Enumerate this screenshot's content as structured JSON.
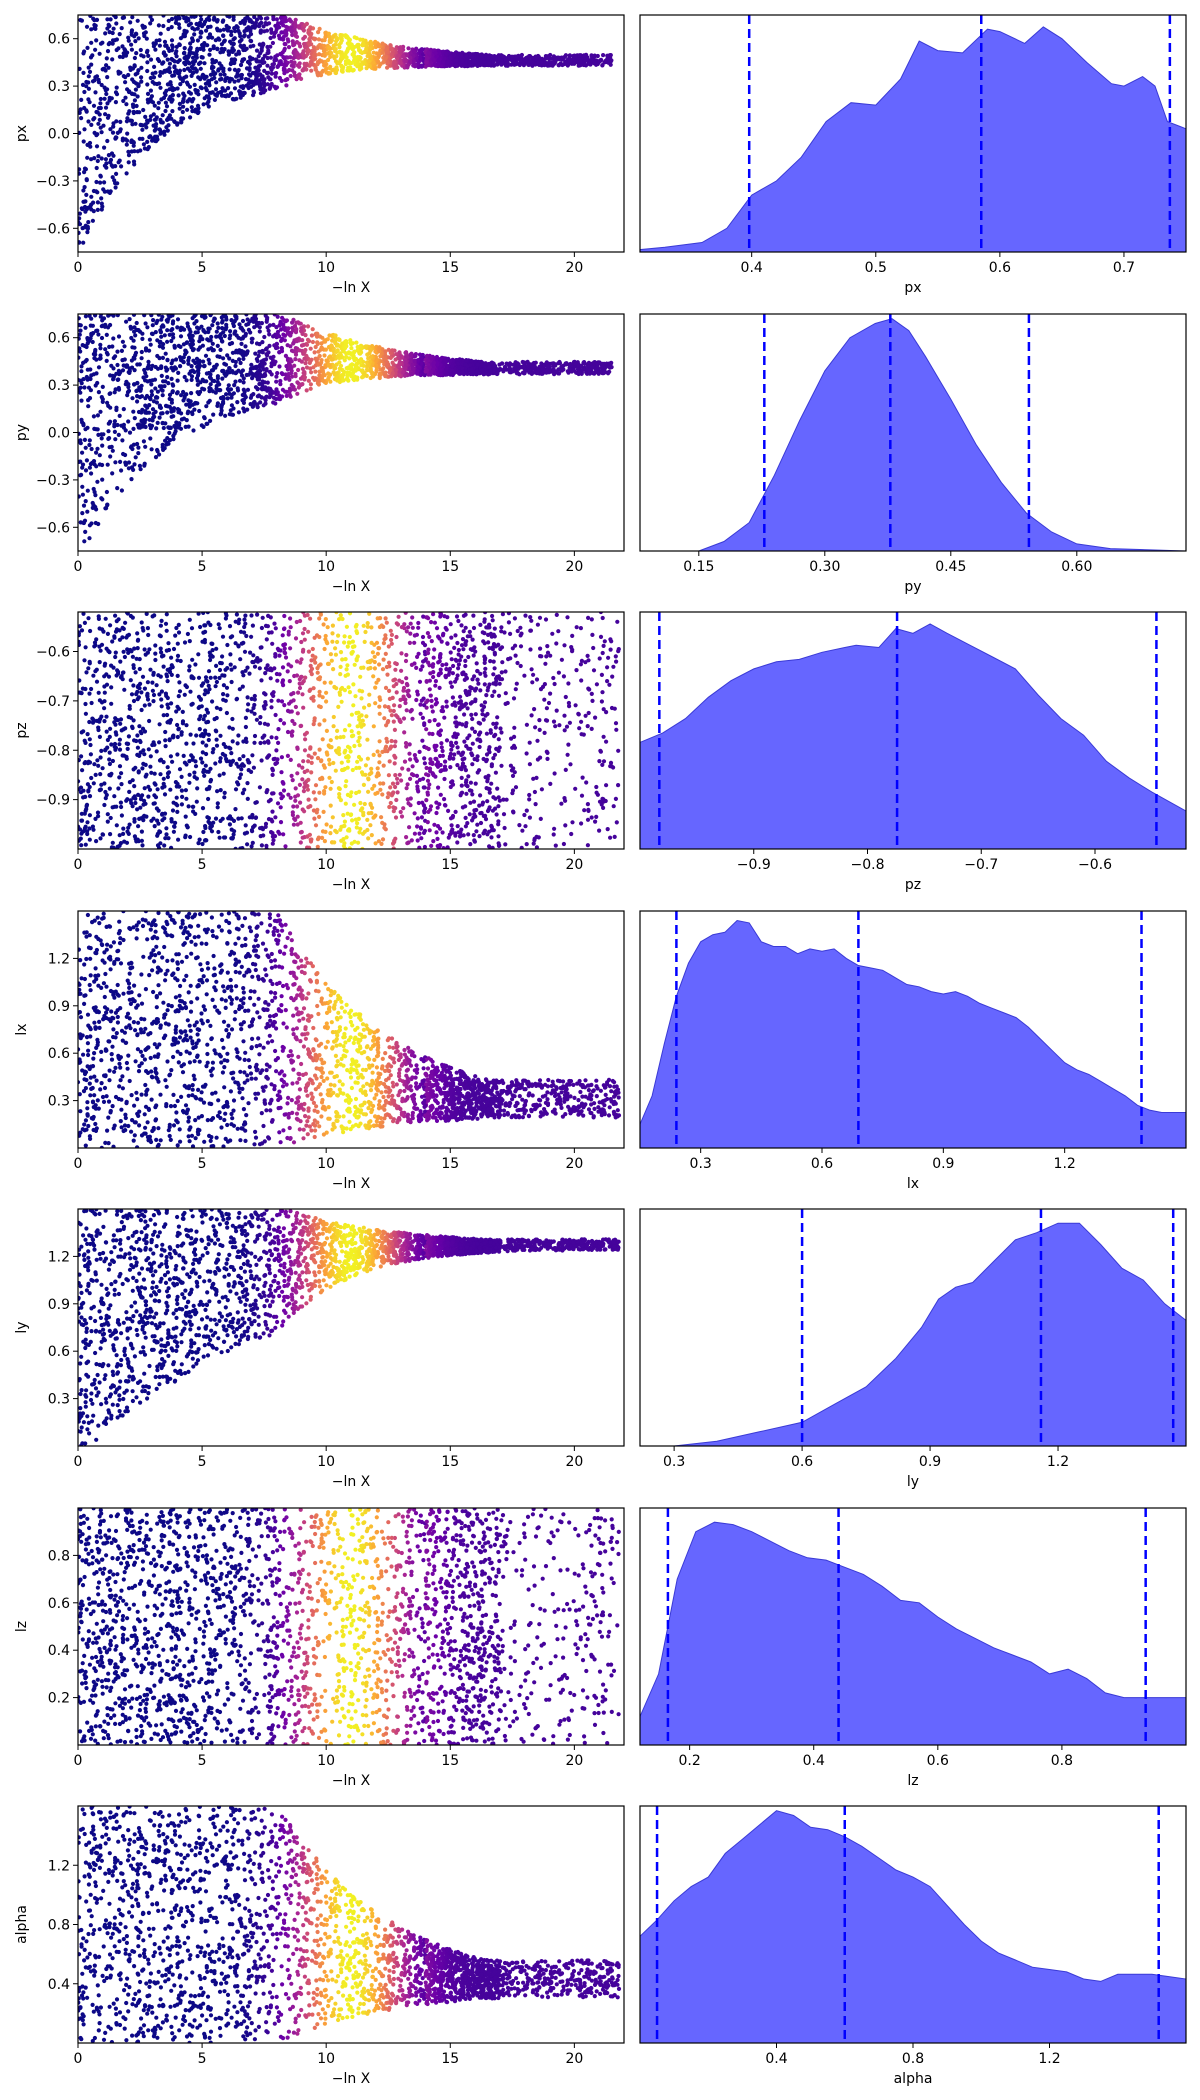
{
  "colors": {
    "kde_fill": "#6666ff",
    "kde_edge": "#3a3ad6",
    "quantile_line": "#0000ff",
    "axis": "#000000",
    "colormap": [
      "#0d0887",
      "#6a00a8",
      "#b12a90",
      "#e16462",
      "#fca636",
      "#f0f921"
    ]
  },
  "chart_data": [
    {
      "type": "scatter",
      "param": "px",
      "xlabel": "−ln X",
      "ylabel": "px",
      "xlim": [
        0,
        22
      ],
      "ylim": [
        -0.75,
        0.75
      ],
      "xticks": [
        0,
        5,
        10,
        15,
        20
      ],
      "xticklabels": [
        "0",
        "5",
        "10",
        "15",
        "20"
      ],
      "yticks": [
        -0.6,
        -0.3,
        0.0,
        0.3,
        0.6
      ],
      "yticklabels": [
        "−0.6",
        "−0.3",
        "0.0",
        "0.3",
        "0.6"
      ],
      "converge_to": 0.43,
      "tail_end": 21.5,
      "lower_start": -0.75,
      "lower_scale": 3.0,
      "color_by": "-lnX"
    },
    {
      "type": "area",
      "param": "px",
      "xlabel": "px",
      "xlim": [
        0.31,
        0.75
      ],
      "xticks": [
        0.4,
        0.5,
        0.6,
        0.7
      ],
      "xticklabels": [
        "0.4",
        "0.5",
        "0.6",
        "0.7"
      ],
      "quantiles": [
        0.398,
        0.585,
        0.737
      ],
      "density": [
        [
          0.31,
          0.01
        ],
        [
          0.33,
          0.02
        ],
        [
          0.36,
          0.04
        ],
        [
          0.38,
          0.1
        ],
        [
          0.4,
          0.24
        ],
        [
          0.42,
          0.3
        ],
        [
          0.44,
          0.4
        ],
        [
          0.46,
          0.55
        ],
        [
          0.48,
          0.63
        ],
        [
          0.5,
          0.62
        ],
        [
          0.52,
          0.73
        ],
        [
          0.535,
          0.89
        ],
        [
          0.55,
          0.85
        ],
        [
          0.57,
          0.84
        ],
        [
          0.59,
          0.94
        ],
        [
          0.6,
          0.93
        ],
        [
          0.62,
          0.88
        ],
        [
          0.635,
          0.95
        ],
        [
          0.65,
          0.9
        ],
        [
          0.67,
          0.8
        ],
        [
          0.69,
          0.71
        ],
        [
          0.7,
          0.7
        ],
        [
          0.715,
          0.74
        ],
        [
          0.725,
          0.7
        ],
        [
          0.735,
          0.55
        ],
        [
          0.745,
          0.53
        ],
        [
          0.75,
          0.52
        ]
      ]
    },
    {
      "type": "scatter",
      "param": "py",
      "xlabel": "−ln X",
      "ylabel": "py",
      "xlim": [
        0,
        22
      ],
      "ylim": [
        -0.75,
        0.75
      ],
      "xticks": [
        0,
        5,
        10,
        15,
        20
      ],
      "xticklabels": [
        "0",
        "5",
        "10",
        "15",
        "20"
      ],
      "yticks": [
        -0.6,
        -0.3,
        0.0,
        0.3,
        0.6
      ],
      "yticklabels": [
        "−0.6",
        "−0.3",
        "0.0",
        "0.3",
        "0.6"
      ],
      "converge_to": 0.37,
      "tail_end": 21.5,
      "lower_start": -0.75,
      "lower_scale": 3.5,
      "color_by": "-lnX"
    },
    {
      "type": "area",
      "param": "py",
      "xlabel": "py",
      "xlim": [
        0.08,
        0.73
      ],
      "xticks": [
        0.15,
        0.3,
        0.45,
        0.6
      ],
      "xticklabels": [
        "0.15",
        "0.30",
        "0.45",
        "0.60"
      ],
      "quantiles": [
        0.228,
        0.378,
        0.543
      ],
      "density": [
        [
          0.08,
          0.0
        ],
        [
          0.15,
          0.0
        ],
        [
          0.18,
          0.04
        ],
        [
          0.21,
          0.12
        ],
        [
          0.24,
          0.32
        ],
        [
          0.27,
          0.55
        ],
        [
          0.3,
          0.76
        ],
        [
          0.33,
          0.9
        ],
        [
          0.36,
          0.96
        ],
        [
          0.38,
          0.98
        ],
        [
          0.4,
          0.93
        ],
        [
          0.42,
          0.82
        ],
        [
          0.45,
          0.64
        ],
        [
          0.48,
          0.45
        ],
        [
          0.51,
          0.29
        ],
        [
          0.54,
          0.16
        ],
        [
          0.57,
          0.08
        ],
        [
          0.6,
          0.03
        ],
        [
          0.64,
          0.01
        ],
        [
          0.73,
          0.0
        ]
      ]
    },
    {
      "type": "scatter",
      "param": "pz",
      "xlabel": "−ln X",
      "ylabel": "pz",
      "xlim": [
        0,
        22
      ],
      "ylim": [
        -1.0,
        -0.52
      ],
      "xticks": [
        0,
        5,
        10,
        15,
        20
      ],
      "xticklabels": [
        "0",
        "5",
        "10",
        "15",
        "20"
      ],
      "yticks": [
        -0.9,
        -0.8,
        -0.7,
        -0.6
      ],
      "yticklabels": [
        "−0.9",
        "−0.8",
        "−0.7",
        "−0.6"
      ],
      "converge_to": null,
      "tail_end": 21.8,
      "color_by": "-lnX"
    },
    {
      "type": "area",
      "param": "pz",
      "xlabel": "pz",
      "xlim": [
        -1.0,
        -0.52
      ],
      "xticks": [
        -0.9,
        -0.8,
        -0.7,
        -0.6
      ],
      "xticklabels": [
        "−0.9",
        "−0.8",
        "−0.7",
        "−0.6"
      ],
      "quantiles": [
        -0.983,
        -0.774,
        -0.546
      ],
      "density": [
        [
          -1.0,
          0.45
        ],
        [
          -0.98,
          0.49
        ],
        [
          -0.96,
          0.55
        ],
        [
          -0.94,
          0.64
        ],
        [
          -0.92,
          0.71
        ],
        [
          -0.9,
          0.76
        ],
        [
          -0.88,
          0.79
        ],
        [
          -0.86,
          0.8
        ],
        [
          -0.84,
          0.83
        ],
        [
          -0.82,
          0.85
        ],
        [
          -0.81,
          0.86
        ],
        [
          -0.79,
          0.85
        ],
        [
          -0.775,
          0.93
        ],
        [
          -0.76,
          0.91
        ],
        [
          -0.745,
          0.95
        ],
        [
          -0.73,
          0.91
        ],
        [
          -0.71,
          0.86
        ],
        [
          -0.69,
          0.81
        ],
        [
          -0.67,
          0.76
        ],
        [
          -0.65,
          0.65
        ],
        [
          -0.63,
          0.55
        ],
        [
          -0.61,
          0.48
        ],
        [
          -0.59,
          0.37
        ],
        [
          -0.57,
          0.3
        ],
        [
          -0.55,
          0.24
        ],
        [
          -0.52,
          0.16
        ]
      ]
    },
    {
      "type": "scatter",
      "param": "lx",
      "xlabel": "−ln X",
      "ylabel": "lx",
      "xlim": [
        0,
        22
      ],
      "ylim": [
        0.0,
        1.5
      ],
      "xticks": [
        0,
        5,
        10,
        15,
        20
      ],
      "xticklabels": [
        "0",
        "5",
        "10",
        "15",
        "20"
      ],
      "yticks": [
        0.3,
        0.6,
        0.9,
        1.2
      ],
      "yticklabels": [
        "0.3",
        "0.6",
        "0.9",
        "1.2"
      ],
      "converge_to": 0.22,
      "tail_end": 21.8,
      "color_by": "-lnX"
    },
    {
      "type": "area",
      "param": "lx",
      "xlabel": "lx",
      "xlim": [
        0.15,
        1.5
      ],
      "xticks": [
        0.3,
        0.6,
        0.9,
        1.2
      ],
      "xticklabels": [
        "0.3",
        "0.6",
        "0.9",
        "1.2"
      ],
      "quantiles": [
        0.24,
        0.69,
        1.39
      ],
      "density": [
        [
          0.15,
          0.1
        ],
        [
          0.18,
          0.22
        ],
        [
          0.21,
          0.44
        ],
        [
          0.24,
          0.64
        ],
        [
          0.27,
          0.78
        ],
        [
          0.3,
          0.87
        ],
        [
          0.33,
          0.9
        ],
        [
          0.36,
          0.91
        ],
        [
          0.39,
          0.96
        ],
        [
          0.42,
          0.95
        ],
        [
          0.45,
          0.87
        ],
        [
          0.48,
          0.85
        ],
        [
          0.51,
          0.85
        ],
        [
          0.54,
          0.82
        ],
        [
          0.57,
          0.84
        ],
        [
          0.6,
          0.83
        ],
        [
          0.63,
          0.84
        ],
        [
          0.66,
          0.8
        ],
        [
          0.69,
          0.77
        ],
        [
          0.72,
          0.76
        ],
        [
          0.75,
          0.75
        ],
        [
          0.78,
          0.72
        ],
        [
          0.81,
          0.69
        ],
        [
          0.84,
          0.68
        ],
        [
          0.87,
          0.66
        ],
        [
          0.9,
          0.65
        ],
        [
          0.93,
          0.66
        ],
        [
          0.96,
          0.64
        ],
        [
          0.99,
          0.61
        ],
        [
          1.02,
          0.59
        ],
        [
          1.05,
          0.57
        ],
        [
          1.08,
          0.55
        ],
        [
          1.11,
          0.51
        ],
        [
          1.14,
          0.46
        ],
        [
          1.17,
          0.41
        ],
        [
          1.2,
          0.36
        ],
        [
          1.23,
          0.33
        ],
        [
          1.26,
          0.31
        ],
        [
          1.29,
          0.28
        ],
        [
          1.32,
          0.25
        ],
        [
          1.35,
          0.22
        ],
        [
          1.38,
          0.18
        ],
        [
          1.41,
          0.16
        ],
        [
          1.44,
          0.15
        ],
        [
          1.47,
          0.15
        ],
        [
          1.5,
          0.15
        ]
      ]
    },
    {
      "type": "scatter",
      "param": "ly",
      "xlabel": "−ln X",
      "ylabel": "ly",
      "xlim": [
        0,
        22
      ],
      "ylim": [
        0.0,
        1.5
      ],
      "xticks": [
        0,
        5,
        10,
        15,
        20
      ],
      "xticklabels": [
        "0",
        "5",
        "10",
        "15",
        "20"
      ],
      "yticks": [
        0.3,
        0.6,
        0.9,
        1.2
      ],
      "yticklabels": [
        "0.3",
        "0.6",
        "0.9",
        "1.2"
      ],
      "converge_to": 1.25,
      "tail_end": 21.8,
      "lower_start": 0.0,
      "lower_scale": 8.0,
      "color_by": "-lnX"
    },
    {
      "type": "area",
      "param": "ly",
      "xlabel": "ly",
      "xlim": [
        0.22,
        1.5
      ],
      "xticks": [
        0.3,
        0.6,
        0.9,
        1.2
      ],
      "xticklabels": [
        "0.3",
        "0.6",
        "0.9",
        "1.2"
      ],
      "quantiles": [
        0.6,
        1.16,
        1.47
      ],
      "density": [
        [
          0.22,
          0.0
        ],
        [
          0.3,
          0.0
        ],
        [
          0.4,
          0.02
        ],
        [
          0.5,
          0.06
        ],
        [
          0.6,
          0.1
        ],
        [
          0.68,
          0.18
        ],
        [
          0.75,
          0.25
        ],
        [
          0.82,
          0.37
        ],
        [
          0.88,
          0.5
        ],
        [
          0.92,
          0.62
        ],
        [
          0.96,
          0.67
        ],
        [
          1.0,
          0.69
        ],
        [
          1.05,
          0.78
        ],
        [
          1.1,
          0.87
        ],
        [
          1.15,
          0.9
        ],
        [
          1.2,
          0.94
        ],
        [
          1.25,
          0.94
        ],
        [
          1.3,
          0.85
        ],
        [
          1.35,
          0.75
        ],
        [
          1.4,
          0.7
        ],
        [
          1.45,
          0.6
        ],
        [
          1.5,
          0.53
        ]
      ]
    },
    {
      "type": "scatter",
      "param": "lz",
      "xlabel": "−ln X",
      "ylabel": "lz",
      "xlim": [
        0,
        22
      ],
      "ylim": [
        0.0,
        1.0
      ],
      "xticks": [
        0,
        5,
        10,
        15,
        20
      ],
      "xticklabels": [
        "0",
        "5",
        "10",
        "15",
        "20"
      ],
      "yticks": [
        0.2,
        0.4,
        0.6,
        0.8
      ],
      "yticklabels": [
        "0.2",
        "0.4",
        "0.6",
        "0.8"
      ],
      "converge_to": null,
      "tail_end": 21.8,
      "color_by": "-lnX"
    },
    {
      "type": "area",
      "param": "lz",
      "xlabel": "lz",
      "xlim": [
        0.12,
        1.0
      ],
      "xticks": [
        0.2,
        0.4,
        0.6,
        0.8
      ],
      "xticklabels": [
        "0.2",
        "0.4",
        "0.6",
        "0.8"
      ],
      "quantiles": [
        0.165,
        0.44,
        0.935
      ],
      "density": [
        [
          0.12,
          0.12
        ],
        [
          0.15,
          0.3
        ],
        [
          0.18,
          0.7
        ],
        [
          0.21,
          0.9
        ],
        [
          0.24,
          0.94
        ],
        [
          0.27,
          0.93
        ],
        [
          0.3,
          0.9
        ],
        [
          0.33,
          0.86
        ],
        [
          0.36,
          0.82
        ],
        [
          0.39,
          0.79
        ],
        [
          0.42,
          0.78
        ],
        [
          0.45,
          0.75
        ],
        [
          0.48,
          0.72
        ],
        [
          0.51,
          0.67
        ],
        [
          0.54,
          0.61
        ],
        [
          0.57,
          0.6
        ],
        [
          0.6,
          0.54
        ],
        [
          0.63,
          0.49
        ],
        [
          0.66,
          0.45
        ],
        [
          0.69,
          0.41
        ],
        [
          0.72,
          0.38
        ],
        [
          0.75,
          0.35
        ],
        [
          0.78,
          0.3
        ],
        [
          0.81,
          0.32
        ],
        [
          0.84,
          0.28
        ],
        [
          0.87,
          0.22
        ],
        [
          0.9,
          0.2
        ],
        [
          0.93,
          0.2
        ],
        [
          0.96,
          0.2
        ],
        [
          1.0,
          0.2
        ]
      ]
    },
    {
      "type": "scatter",
      "param": "alpha",
      "xlabel": "−ln X",
      "ylabel": "alpha",
      "xlim": [
        0,
        22
      ],
      "ylim": [
        0.0,
        1.6
      ],
      "xticks": [
        0,
        5,
        10,
        15,
        20
      ],
      "xticklabels": [
        "0",
        "5",
        "10",
        "15",
        "20"
      ],
      "yticks": [
        0.4,
        0.8,
        1.2
      ],
      "yticklabels": [
        "0.4",
        "0.8",
        "1.2"
      ],
      "converge_to": 0.35,
      "tail_end": 21.8,
      "color_by": "-lnX"
    },
    {
      "type": "area",
      "param": "alpha",
      "xlabel": "alpha",
      "xlim": [
        0.0,
        1.6
      ],
      "xticks": [
        0.4,
        0.8,
        1.2
      ],
      "xticklabels": [
        "0.4",
        "0.8",
        "1.2"
      ],
      "quantiles": [
        0.05,
        0.6,
        1.52
      ],
      "density": [
        [
          0.0,
          0.45
        ],
        [
          0.05,
          0.52
        ],
        [
          0.1,
          0.6
        ],
        [
          0.15,
          0.66
        ],
        [
          0.2,
          0.7
        ],
        [
          0.25,
          0.8
        ],
        [
          0.3,
          0.86
        ],
        [
          0.35,
          0.92
        ],
        [
          0.4,
          0.98
        ],
        [
          0.45,
          0.96
        ],
        [
          0.5,
          0.91
        ],
        [
          0.55,
          0.9
        ],
        [
          0.6,
          0.87
        ],
        [
          0.65,
          0.83
        ],
        [
          0.7,
          0.78
        ],
        [
          0.75,
          0.73
        ],
        [
          0.8,
          0.7
        ],
        [
          0.85,
          0.66
        ],
        [
          0.9,
          0.58
        ],
        [
          0.95,
          0.5
        ],
        [
          1.0,
          0.43
        ],
        [
          1.05,
          0.38
        ],
        [
          1.1,
          0.35
        ],
        [
          1.15,
          0.32
        ],
        [
          1.2,
          0.31
        ],
        [
          1.25,
          0.3
        ],
        [
          1.3,
          0.27
        ],
        [
          1.35,
          0.26
        ],
        [
          1.4,
          0.29
        ],
        [
          1.45,
          0.29
        ],
        [
          1.5,
          0.29
        ],
        [
          1.55,
          0.28
        ],
        [
          1.6,
          0.27
        ]
      ]
    }
  ]
}
